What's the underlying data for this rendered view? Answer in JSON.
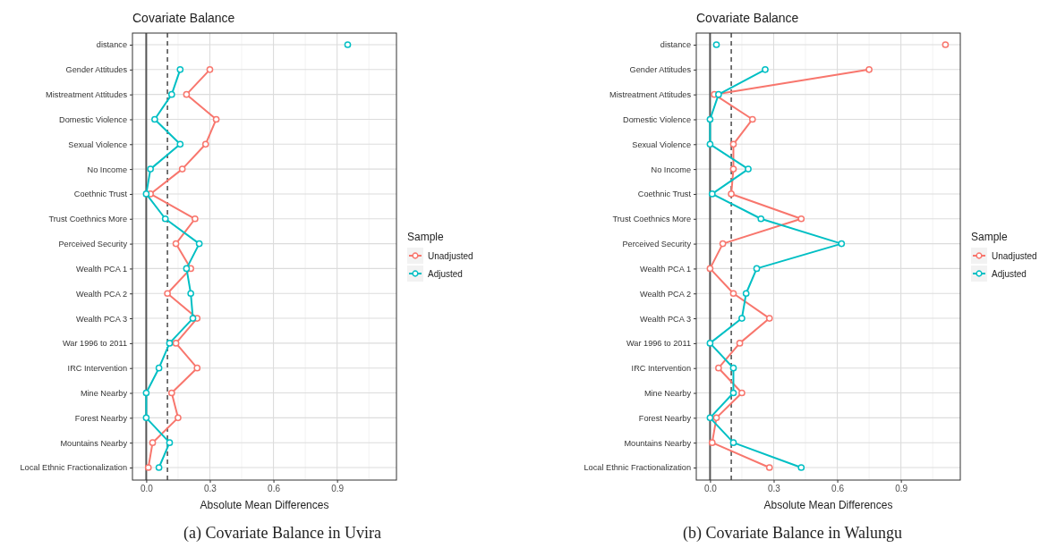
{
  "chart_data": [
    {
      "type": "line",
      "orientation": "horizontal",
      "title": "Covariate Balance",
      "xlabel": "Absolute Mean Differences",
      "legend_title": "Sample",
      "legend": "right",
      "marker": "circle",
      "grid": true,
      "categories": [
        "distance",
        "Gender Attitudes",
        "Mistreatment Attitudes",
        "Domestic Violence",
        "Sexual Violence",
        "No Income",
        "Coethnic Trust",
        "Trust Coethnics More",
        "Perceived Security",
        "Wealth PCA 1",
        "Wealth PCA 2",
        "Wealth PCA 3",
        "War 1996 to 2011",
        "IRC Intervention",
        "Mine Nearby",
        "Forest Nearby",
        "Mountains Nearby",
        "Local Ethnic Fractionalization"
      ],
      "xlim": [
        -0.065,
        1.18
      ],
      "xticks": [
        {
          "value": 0,
          "label": "0.0"
        },
        0.3,
        0.6,
        0.9
      ],
      "ref_lines": [
        {
          "axis": "x",
          "value": 0,
          "color": "#555555",
          "line_style": "solid"
        },
        {
          "axis": "x",
          "value": 0.1,
          "color": "#555555",
          "line_style": "dashed"
        }
      ],
      "series": [
        {
          "name": "Unadjusted",
          "color": "#f8766d",
          "values": [
            null,
            0.3,
            0.19,
            0.33,
            0.28,
            0.17,
            0.02,
            0.23,
            0.14,
            0.21,
            0.1,
            0.24,
            0.14,
            0.24,
            0.12,
            0.15,
            0.03,
            0.01
          ]
        },
        {
          "name": "Adjusted",
          "color": "#00bfc4",
          "values": [
            null,
            0.16,
            0.12,
            0.04,
            0.16,
            0.02,
            0.0,
            0.09,
            0.25,
            0.19,
            0.21,
            0.22,
            0.11,
            0.06,
            0.0,
            0.0,
            0.11,
            0.06
          ]
        },
        {
          "type": "scatter",
          "color": "#00bfc4",
          "values": [
            0.95,
            null,
            null,
            null,
            null,
            null,
            null,
            null,
            null,
            null,
            null,
            null,
            null,
            null,
            null,
            null,
            null,
            null
          ]
        }
      ],
      "annotations": [
        "(a) Covariate Balance in Uvira"
      ]
    },
    {
      "type": "line",
      "orientation": "horizontal",
      "title": "Covariate Balance",
      "xlabel": "Absolute Mean Differences",
      "legend_title": "Sample",
      "legend": "right",
      "marker": "circle",
      "grid": true,
      "categories": [
        "distance",
        "Gender Attitudes",
        "Mistreatment Attitudes",
        "Domestic Violence",
        "Sexual Violence",
        "No Income",
        "Coethnic Trust",
        "Trust Coethnics More",
        "Perceived Security",
        "Wealth PCA 1",
        "Wealth PCA 2",
        "Wealth PCA 3",
        "War 1996 to 2011",
        "IRC Intervention",
        "Mine Nearby",
        "Forest Nearby",
        "Mountains Nearby",
        "Local Ethnic Fractionalization"
      ],
      "xlim": [
        -0.065,
        1.18
      ],
      "xticks": [
        {
          "value": 0,
          "label": "0.0"
        },
        0.3,
        0.6,
        0.9
      ],
      "ref_lines": [
        {
          "axis": "x",
          "value": 0,
          "color": "#555555",
          "line_style": "solid"
        },
        {
          "axis": "x",
          "value": 0.1,
          "color": "#555555",
          "line_style": "dashed"
        }
      ],
      "series": [
        {
          "name": "Unadjusted",
          "color": "#f8766d",
          "values": [
            null,
            0.75,
            0.02,
            0.2,
            0.11,
            0.11,
            0.1,
            0.43,
            0.06,
            0.0,
            0.11,
            0.28,
            0.14,
            0.04,
            0.15,
            0.03,
            0.01,
            0.28
          ]
        },
        {
          "name": "Adjusted",
          "color": "#00bfc4",
          "values": [
            null,
            0.26,
            0.04,
            0.0,
            0.0,
            0.18,
            0.01,
            0.24,
            0.62,
            0.22,
            0.17,
            0.15,
            0.0,
            0.11,
            0.11,
            0.0,
            0.11,
            0.43
          ]
        },
        {
          "type": "scatter",
          "color": "#f8766d",
          "values": [
            1.11,
            null,
            null,
            null,
            null,
            null,
            null,
            null,
            null,
            null,
            null,
            null,
            null,
            null,
            null,
            null,
            null,
            null
          ]
        },
        {
          "type": "scatter",
          "color": "#00bfc4",
          "values": [
            0.03,
            null,
            null,
            null,
            null,
            null,
            null,
            null,
            null,
            null,
            null,
            null,
            null,
            null,
            null,
            null,
            null,
            null
          ]
        }
      ],
      "annotations": [
        "(b) Covariate Balance in Walungu"
      ]
    }
  ]
}
